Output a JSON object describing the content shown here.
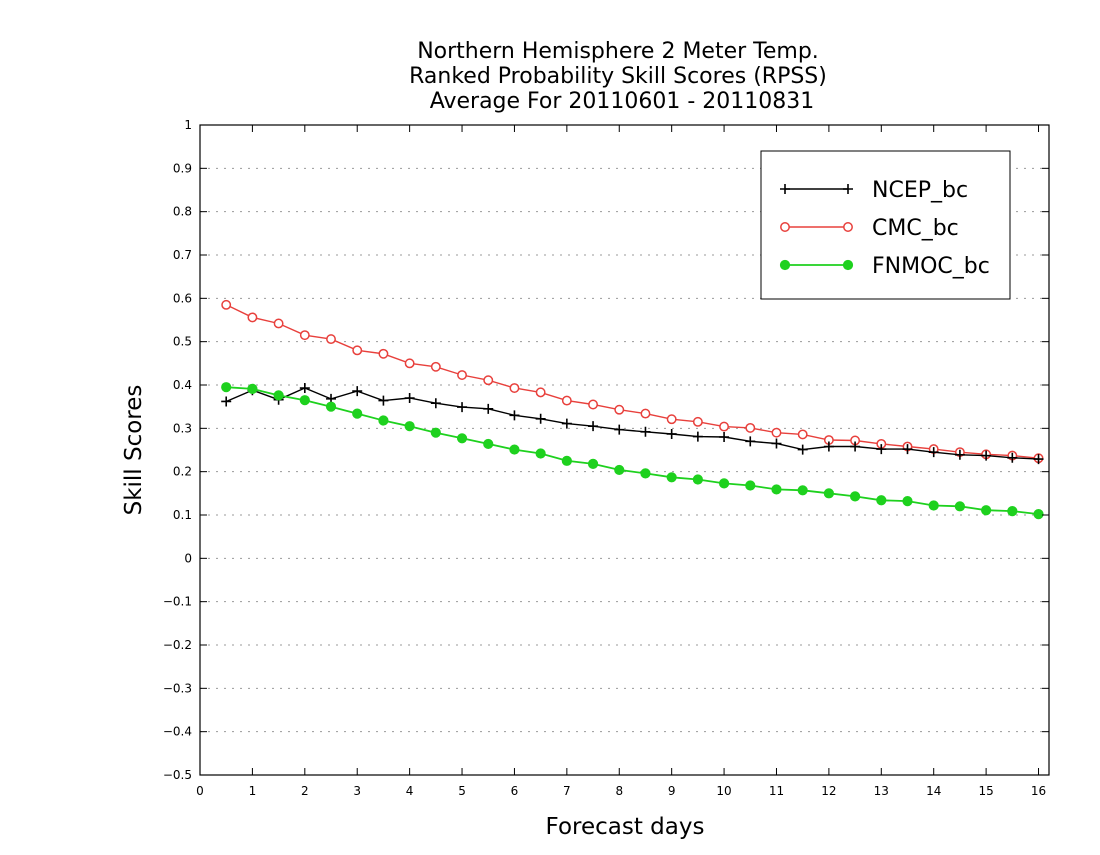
{
  "title_lines": [
    "Northern Hemisphere 2 Meter Temp.",
    "Ranked Probability Skill Scores (RPSS)",
    "Average For 20110601 - 20110831"
  ],
  "colors": {
    "ncep": "#000000",
    "cmc": "#e8403c",
    "fnmoc": "#1ed11e",
    "grid": "#999999"
  },
  "chart_data": {
    "type": "line",
    "title": "Northern Hemisphere 2 Meter Temp. Ranked Probability Skill Scores (RPSS) Average For 20110601 - 20110831",
    "xlabel": "Forecast days",
    "ylabel": "Skill Scores",
    "xlim": [
      0,
      16.2
    ],
    "ylim": [
      -0.5,
      1
    ],
    "xticks": [
      0,
      1,
      2,
      3,
      4,
      5,
      6,
      7,
      8,
      9,
      10,
      11,
      12,
      13,
      14,
      15,
      16
    ],
    "yticks": [
      -0.5,
      -0.4,
      -0.3,
      -0.2,
      -0.1,
      0,
      0.1,
      0.2,
      0.3,
      0.4,
      0.5,
      0.6,
      0.7,
      0.8,
      0.9,
      1
    ],
    "ytick_labels": [
      "−0.5",
      "−0.4",
      "−0.3",
      "−0.2",
      "−0.1",
      "0",
      "0.1",
      "0.2",
      "0.3",
      "0.4",
      "0.5",
      "0.6",
      "0.7",
      "0.8",
      "0.9",
      "1"
    ],
    "grid": "horizontal dotted",
    "legend_position": "top-right",
    "x": [
      0.5,
      1,
      1.5,
      2,
      2.5,
      3,
      3.5,
      4,
      4.5,
      5,
      5.5,
      6,
      6.5,
      7,
      7.5,
      8,
      8.5,
      9,
      9.5,
      10,
      10.5,
      11,
      11.5,
      12,
      12.5,
      13,
      13.5,
      14,
      14.5,
      15,
      15.5,
      16
    ],
    "series": [
      {
        "name": "NCEP_bc",
        "marker": "plus",
        "values": [
          0.362,
          0.388,
          0.366,
          0.393,
          0.368,
          0.386,
          0.364,
          0.37,
          0.358,
          0.349,
          0.345,
          0.33,
          0.322,
          0.311,
          0.305,
          0.297,
          0.292,
          0.287,
          0.281,
          0.28,
          0.27,
          0.265,
          0.251,
          0.258,
          0.258,
          0.252,
          0.252,
          0.245,
          0.239,
          0.237,
          0.232,
          0.229
        ]
      },
      {
        "name": "CMC_bc",
        "marker": "open-circle",
        "values": [
          0.585,
          0.556,
          0.542,
          0.515,
          0.506,
          0.48,
          0.472,
          0.45,
          0.442,
          0.423,
          0.411,
          0.393,
          0.383,
          0.364,
          0.355,
          0.343,
          0.334,
          0.321,
          0.315,
          0.304,
          0.301,
          0.29,
          0.286,
          0.273,
          0.272,
          0.264,
          0.258,
          0.252,
          0.245,
          0.24,
          0.237,
          0.231
        ]
      },
      {
        "name": "FNMOC_bc",
        "marker": "filled-circle",
        "values": [
          0.395,
          0.391,
          0.376,
          0.365,
          0.35,
          0.334,
          0.318,
          0.305,
          0.29,
          0.277,
          0.264,
          0.251,
          0.242,
          0.225,
          0.218,
          0.204,
          0.196,
          0.187,
          0.182,
          0.173,
          0.168,
          0.159,
          0.157,
          0.15,
          0.143,
          0.134,
          0.132,
          0.122,
          0.12,
          0.111,
          0.109,
          0.102
        ]
      }
    ]
  }
}
